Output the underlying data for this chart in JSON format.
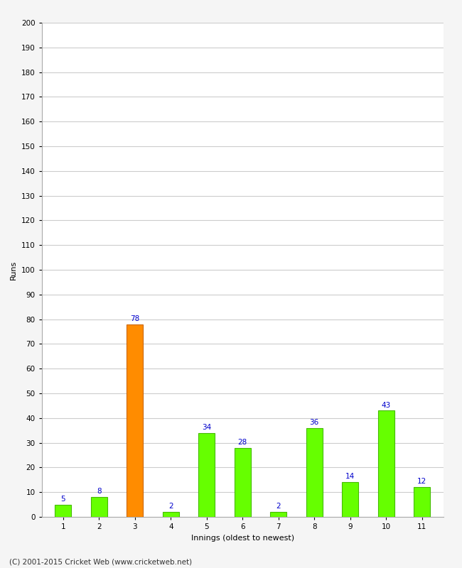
{
  "xlabel": "Innings (oldest to newest)",
  "ylabel": "Runs",
  "categories": [
    "1",
    "2",
    "3",
    "4",
    "5",
    "6",
    "7",
    "8",
    "9",
    "10",
    "11"
  ],
  "values": [
    5,
    8,
    78,
    2,
    34,
    28,
    2,
    36,
    14,
    43,
    12
  ],
  "bar_colors": [
    "#66ff00",
    "#66ff00",
    "#ff8c00",
    "#66ff00",
    "#66ff00",
    "#66ff00",
    "#66ff00",
    "#66ff00",
    "#66ff00",
    "#66ff00",
    "#66ff00"
  ],
  "bar_edge_colors": [
    "#44bb00",
    "#44bb00",
    "#cc6600",
    "#44bb00",
    "#44bb00",
    "#44bb00",
    "#44bb00",
    "#44bb00",
    "#44bb00",
    "#44bb00",
    "#44bb00"
  ],
  "ylim": [
    0,
    200
  ],
  "yticks": [
    0,
    10,
    20,
    30,
    40,
    50,
    60,
    70,
    80,
    90,
    100,
    110,
    120,
    130,
    140,
    150,
    160,
    170,
    180,
    190,
    200
  ],
  "label_color": "#0000cc",
  "label_fontsize": 7.5,
  "axis_label_fontsize": 8,
  "tick_fontsize": 7.5,
  "background_color": "#f5f5f5",
  "plot_bg_color": "#ffffff",
  "grid_color": "#cccccc",
  "footer_text": "(C) 2001-2015 Cricket Web (www.cricketweb.net)",
  "footer_fontsize": 7.5,
  "bar_width": 0.45
}
